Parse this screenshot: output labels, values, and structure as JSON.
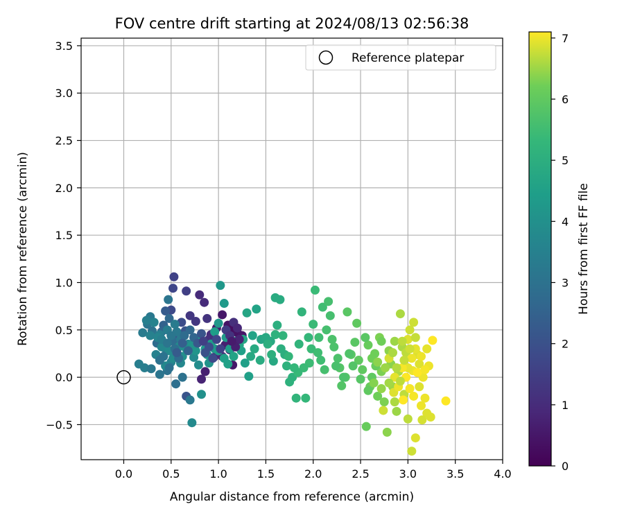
{
  "chart_data": {
    "type": "scatter",
    "title": "FOV centre drift starting at 2024/08/13 02:56:38",
    "xlabel": "Angular distance from reference (arcmin)",
    "ylabel": "Rotation from reference (arcmin)",
    "xlim": [
      -0.45,
      4.0
    ],
    "ylim": [
      -0.87,
      3.58
    ],
    "xticks": [
      "0.0",
      "0.5",
      "1.0",
      "1.5",
      "2.0",
      "2.5",
      "3.0",
      "3.5",
      "4.0"
    ],
    "yticks": [
      "−0.5",
      "0.0",
      "0.5",
      "1.0",
      "1.5",
      "2.0",
      "2.5",
      "3.0",
      "3.5"
    ],
    "grid": true,
    "legend": {
      "position": "top-right",
      "entries": [
        "Reference platepar"
      ]
    },
    "reference_point": {
      "x": 0.0,
      "y": 0.0
    },
    "colorbar": {
      "label": "Hours from first FF file",
      "range": [
        0,
        7.1
      ],
      "ticks": [
        "0",
        "1",
        "2",
        "3",
        "4",
        "5",
        "6",
        "7"
      ],
      "colormap": "viridis"
    },
    "points": [
      [
        0.8,
        0.87,
        1.0
      ],
      [
        0.85,
        0.79,
        1.0
      ],
      [
        0.88,
        0.62,
        1.2
      ],
      [
        0.76,
        0.59,
        1.3
      ],
      [
        0.86,
        0.06,
        0.7
      ],
      [
        0.82,
        -0.02,
        0.8
      ],
      [
        0.92,
        0.45,
        1.0
      ],
      [
        0.98,
        0.52,
        0.6
      ],
      [
        1.04,
        0.66,
        0.5
      ],
      [
        1.1,
        0.55,
        0.4
      ],
      [
        1.14,
        0.5,
        0.3
      ],
      [
        1.2,
        0.47,
        0.4
      ],
      [
        1.25,
        0.44,
        0.5
      ],
      [
        1.12,
        0.29,
        0.6
      ],
      [
        1.07,
        0.34,
        0.7
      ],
      [
        1.04,
        0.22,
        0.8
      ],
      [
        1.15,
        0.13,
        0.5
      ],
      [
        0.95,
        0.21,
        0.9
      ],
      [
        0.9,
        0.4,
        1.1
      ],
      [
        0.7,
        0.65,
        1.3
      ],
      [
        0.66,
        0.91,
        1.5
      ],
      [
        0.53,
        1.06,
        1.6
      ],
      [
        0.52,
        0.94,
        1.7
      ],
      [
        0.5,
        0.71,
        1.8
      ],
      [
        0.61,
        0.58,
        1.9
      ],
      [
        0.65,
        0.49,
        2.1
      ],
      [
        0.58,
        0.45,
        2.2
      ],
      [
        0.44,
        0.7,
        2.3
      ],
      [
        0.66,
        -0.2,
        2.1
      ],
      [
        0.42,
        0.55,
        2.5
      ],
      [
        0.4,
        0.48,
        2.6
      ],
      [
        0.48,
        0.62,
        2.7
      ],
      [
        0.52,
        0.38,
        2.8
      ],
      [
        0.35,
        0.36,
        2.8
      ],
      [
        0.3,
        0.49,
        3.0
      ],
      [
        0.25,
        0.56,
        3.1
      ],
      [
        0.28,
        0.64,
        3.2
      ],
      [
        0.2,
        0.47,
        3.3
      ],
      [
        0.16,
        0.14,
        3.4
      ],
      [
        0.22,
        0.1,
        3.4
      ],
      [
        0.29,
        0.09,
        3.2
      ],
      [
        0.38,
        0.03,
        3.1
      ],
      [
        0.46,
        0.07,
        3.0
      ],
      [
        0.55,
        -0.07,
        2.9
      ],
      [
        0.62,
        0.0,
        3.0
      ],
      [
        0.7,
        -0.24,
        3.2
      ],
      [
        0.47,
        0.82,
        3.1
      ],
      [
        0.44,
        0.3,
        3.3
      ],
      [
        0.38,
        0.45,
        3.4
      ],
      [
        0.34,
        0.24,
        3.5
      ],
      [
        0.5,
        0.16,
        3.5
      ],
      [
        0.56,
        0.27,
        3.6
      ],
      [
        0.6,
        0.15,
        3.7
      ],
      [
        0.68,
        0.35,
        3.7
      ],
      [
        0.72,
        -0.48,
        3.8
      ],
      [
        0.74,
        0.21,
        3.8
      ],
      [
        0.79,
        0.13,
        3.9
      ],
      [
        0.82,
        -0.18,
        4.0
      ],
      [
        0.88,
        0.24,
        4.0
      ],
      [
        0.9,
        0.15,
        4.1
      ],
      [
        0.96,
        0.3,
        4.1
      ],
      [
        1.0,
        0.57,
        4.2
      ],
      [
        1.02,
        0.97,
        4.2
      ],
      [
        1.06,
        0.78,
        4.3
      ],
      [
        1.08,
        0.42,
        4.3
      ],
      [
        1.12,
        0.3,
        4.4
      ],
      [
        1.18,
        0.38,
        4.4
      ],
      [
        1.24,
        0.28,
        4.5
      ],
      [
        1.28,
        0.15,
        4.5
      ],
      [
        1.32,
        0.01,
        4.5
      ],
      [
        1.36,
        0.44,
        4.6
      ],
      [
        1.4,
        0.72,
        4.6
      ],
      [
        1.3,
        0.68,
        4.7
      ],
      [
        1.45,
        0.4,
        4.7
      ],
      [
        1.5,
        0.42,
        4.8
      ],
      [
        1.55,
        0.38,
        4.8
      ],
      [
        1.58,
        0.17,
        4.8
      ],
      [
        1.6,
        0.84,
        4.9
      ],
      [
        1.65,
        0.82,
        4.9
      ],
      [
        1.62,
        0.55,
        5.0
      ],
      [
        1.66,
        0.3,
        5.0
      ],
      [
        1.7,
        0.24,
        5.0
      ],
      [
        1.72,
        0.12,
        5.1
      ],
      [
        1.75,
        -0.05,
        5.1
      ],
      [
        1.78,
        0.0,
        5.1
      ],
      [
        1.82,
        -0.22,
        5.2
      ],
      [
        1.85,
        0.35,
        5.2
      ],
      [
        1.88,
        0.69,
        5.2
      ],
      [
        1.92,
        -0.22,
        5.3
      ],
      [
        1.95,
        0.42,
        5.3
      ],
      [
        1.98,
        0.3,
        5.4
      ],
      [
        2.0,
        0.56,
        5.4
      ],
      [
        2.02,
        0.92,
        5.4
      ],
      [
        2.05,
        0.26,
        5.5
      ],
      [
        2.08,
        0.18,
        5.5
      ],
      [
        2.1,
        0.74,
        5.5
      ],
      [
        2.14,
        0.5,
        5.6
      ],
      [
        2.16,
        0.8,
        5.6
      ],
      [
        2.18,
        0.65,
        5.6
      ],
      [
        2.2,
        0.4,
        5.7
      ],
      [
        2.22,
        0.32,
        5.7
      ],
      [
        2.26,
        0.2,
        5.7
      ],
      [
        2.28,
        0.1,
        5.8
      ],
      [
        2.3,
        -0.09,
        5.8
      ],
      [
        2.34,
        0.0,
        5.8
      ],
      [
        2.36,
        0.69,
        5.9
      ],
      [
        2.4,
        0.24,
        5.9
      ],
      [
        2.44,
        0.37,
        5.9
      ],
      [
        2.46,
        0.57,
        6.0
      ],
      [
        2.48,
        0.18,
        6.0
      ],
      [
        2.52,
        0.08,
        6.0
      ],
      [
        2.56,
        -0.52,
        6.1
      ],
      [
        2.58,
        0.34,
        6.1
      ],
      [
        2.6,
        -0.1,
        6.1
      ],
      [
        2.62,
        0.2,
        6.2
      ],
      [
        2.65,
        0.25,
        6.2
      ],
      [
        2.68,
        -0.2,
        6.2
      ],
      [
        2.7,
        0.42,
        6.3
      ],
      [
        2.72,
        0.06,
        6.3
      ],
      [
        2.75,
        -0.26,
        6.3
      ],
      [
        2.78,
        -0.58,
        6.4
      ],
      [
        2.8,
        0.28,
        6.4
      ],
      [
        2.82,
        0.14,
        6.4
      ],
      [
        2.84,
        -0.1,
        6.5
      ],
      [
        2.86,
        0.38,
        6.5
      ],
      [
        2.88,
        -0.36,
        6.5
      ],
      [
        2.9,
        0.06,
        6.6
      ],
      [
        2.92,
        0.67,
        6.6
      ],
      [
        2.94,
        0.32,
        6.6
      ],
      [
        2.96,
        -0.18,
        6.7
      ],
      [
        2.98,
        0.26,
        6.7
      ],
      [
        3.0,
        -0.44,
        6.7
      ],
      [
        3.02,
        0.5,
        6.8
      ],
      [
        3.04,
        -0.78,
        6.8
      ],
      [
        3.06,
        0.58,
        6.8
      ],
      [
        3.08,
        -0.64,
        6.9
      ],
      [
        3.1,
        0.24,
        6.9
      ],
      [
        3.12,
        0.14,
        6.9
      ],
      [
        3.14,
        -0.3,
        7.0
      ],
      [
        3.16,
        0.0,
        7.0
      ],
      [
        3.18,
        -0.22,
        7.0
      ],
      [
        3.22,
        0.12,
        7.0
      ],
      [
        3.26,
        0.39,
        7.1
      ],
      [
        3.4,
        -0.25,
        7.1
      ],
      [
        3.2,
        -0.38,
        6.9
      ],
      [
        3.05,
        0.07,
        7.0
      ],
      [
        2.95,
        -0.24,
        7.1
      ],
      [
        2.85,
        -0.16,
        6.9
      ],
      [
        2.74,
        -0.35,
        6.8
      ],
      [
        3.0,
        0.1,
        6.95
      ],
      [
        2.72,
        0.38,
        6.2
      ],
      [
        2.66,
        0.12,
        6.1
      ],
      [
        2.62,
        0.0,
        6.0
      ],
      [
        2.58,
        -0.14,
        6.0
      ],
      [
        2.55,
        0.42,
        5.9
      ],
      [
        2.5,
        -0.02,
        5.85
      ],
      [
        2.42,
        0.12,
        5.8
      ],
      [
        2.38,
        0.25,
        5.75
      ],
      [
        2.32,
        0.0,
        5.7
      ],
      [
        2.24,
        0.12,
        5.65
      ],
      [
        2.12,
        0.08,
        5.6
      ],
      [
        2.06,
        0.42,
        5.5
      ],
      [
        1.96,
        0.15,
        5.45
      ],
      [
        1.9,
        0.1,
        5.4
      ],
      [
        1.84,
        0.05,
        5.35
      ],
      [
        1.8,
        0.1,
        5.3
      ],
      [
        1.74,
        0.22,
        5.25
      ],
      [
        1.68,
        0.44,
        5.2
      ],
      [
        1.6,
        0.45,
        5.1
      ],
      [
        1.56,
        0.24,
        5.05
      ],
      [
        1.52,
        0.35,
        5.0
      ],
      [
        1.44,
        0.18,
        4.9
      ],
      [
        1.38,
        0.3,
        4.85
      ],
      [
        1.34,
        0.22,
        4.8
      ],
      [
        1.26,
        0.4,
        4.7
      ],
      [
        1.22,
        0.34,
        4.65
      ],
      [
        1.16,
        0.22,
        4.6
      ],
      [
        1.1,
        0.14,
        4.55
      ],
      [
        1.06,
        0.2,
        4.5
      ],
      [
        1.0,
        0.28,
        4.45
      ],
      [
        0.96,
        0.48,
        4.4
      ],
      [
        0.92,
        0.35,
        4.35
      ],
      [
        0.86,
        0.3,
        4.3
      ],
      [
        0.8,
        0.42,
        4.2
      ],
      [
        0.76,
        0.28,
        4.15
      ],
      [
        0.72,
        0.34,
        4.1
      ],
      [
        0.66,
        0.3,
        4.0
      ],
      [
        0.62,
        0.22,
        3.95
      ],
      [
        0.58,
        0.32,
        3.9
      ],
      [
        0.52,
        0.2,
        3.85
      ],
      [
        0.48,
        0.28,
        3.8
      ],
      [
        0.44,
        0.12,
        3.75
      ],
      [
        0.4,
        0.32,
        3.7
      ],
      [
        0.36,
        0.42,
        3.6
      ],
      [
        0.32,
        0.58,
        3.55
      ],
      [
        0.28,
        0.44,
        3.5
      ],
      [
        0.24,
        0.6,
        3.45
      ],
      [
        0.4,
        0.4,
        3.4
      ],
      [
        0.46,
        0.5,
        3.35
      ],
      [
        0.54,
        0.56,
        3.3
      ],
      [
        0.6,
        0.4,
        3.25
      ],
      [
        0.56,
        0.48,
        3.2
      ],
      [
        0.5,
        0.44,
        3.15
      ],
      [
        0.46,
        0.36,
        3.1
      ],
      [
        0.42,
        0.22,
        3.05
      ],
      [
        0.38,
        0.18,
        3.0
      ],
      [
        0.48,
        0.1,
        2.95
      ],
      [
        0.54,
        0.3,
        2.9
      ],
      [
        0.58,
        0.2,
        2.85
      ],
      [
        0.64,
        0.44,
        2.8
      ],
      [
        0.7,
        0.5,
        2.7
      ],
      [
        0.74,
        0.42,
        2.6
      ],
      [
        0.68,
        0.28,
        2.5
      ],
      [
        0.62,
        0.36,
        2.4
      ],
      [
        0.56,
        0.26,
        2.3
      ],
      [
        0.78,
        0.36,
        2.2
      ],
      [
        0.82,
        0.46,
        2.1
      ],
      [
        0.86,
        0.26,
        2.0
      ],
      [
        0.9,
        0.32,
        1.9
      ],
      [
        0.94,
        0.2,
        1.8
      ],
      [
        0.98,
        0.4,
        1.7
      ],
      [
        1.02,
        0.3,
        1.6
      ],
      [
        0.84,
        0.38,
        1.5
      ],
      [
        1.08,
        0.5,
        1.4
      ],
      [
        1.12,
        0.44,
        1.2
      ],
      [
        1.16,
        0.58,
        1.1
      ],
      [
        1.2,
        0.52,
        0.9
      ],
      [
        1.22,
        0.4,
        0.8
      ],
      [
        1.18,
        0.32,
        0.7
      ],
      [
        1.14,
        0.38,
        0.6
      ],
      [
        2.8,
        0.2,
        6.85
      ],
      [
        2.86,
        0.0,
        6.95
      ],
      [
        2.9,
        -0.1,
        7.0
      ],
      [
        2.94,
        0.1,
        7.05
      ],
      [
        2.98,
        0.0,
        7.1
      ],
      [
        3.02,
        -0.12,
        7.05
      ],
      [
        3.04,
        0.2,
        7.0
      ],
      [
        3.08,
        0.3,
        6.95
      ],
      [
        3.1,
        0.05,
        7.1
      ],
      [
        3.06,
        -0.2,
        7.05
      ],
      [
        3.0,
        0.4,
        6.9
      ],
      [
        2.96,
        0.18,
        6.75
      ],
      [
        2.92,
        -0.04,
        6.7
      ],
      [
        2.88,
        0.1,
        6.65
      ],
      [
        2.84,
        0.26,
        6.6
      ],
      [
        2.8,
        -0.06,
        6.55
      ],
      [
        2.76,
        0.1,
        6.5
      ],
      [
        2.72,
        -0.12,
        6.45
      ],
      [
        2.68,
        0.16,
        6.4
      ],
      [
        2.64,
        -0.06,
        6.35
      ],
      [
        3.12,
        -0.1,
        6.9
      ],
      [
        3.14,
        0.22,
        7.0
      ],
      [
        3.18,
        0.08,
        7.05
      ],
      [
        3.2,
        0.3,
        6.95
      ],
      [
        3.24,
        -0.42,
        6.9
      ],
      [
        3.15,
        -0.45,
        6.85
      ],
      [
        3.02,
        0.3,
        6.8
      ],
      [
        3.08,
        0.42,
        6.75
      ],
      [
        2.94,
        0.38,
        6.7
      ],
      [
        2.86,
        -0.26,
        6.6
      ]
    ]
  }
}
